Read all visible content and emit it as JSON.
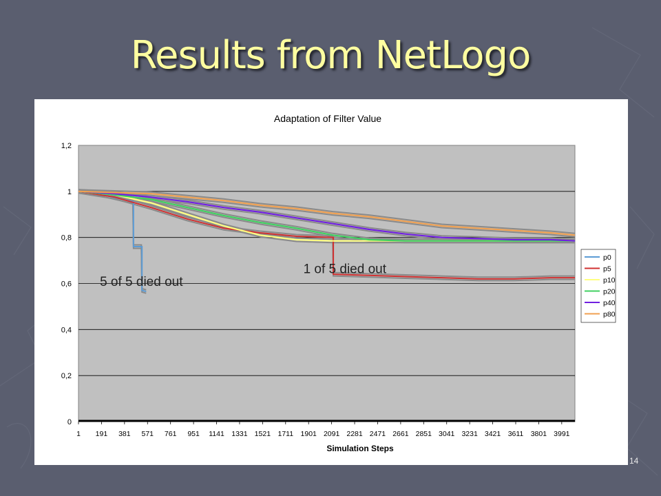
{
  "slide": {
    "title": "Results from NetLogo",
    "page_number": "14"
  },
  "chart_data": {
    "type": "line",
    "title": "Adaptation of Filter Value",
    "xlabel": "Simulation Steps",
    "ylabel": "",
    "xlim": [
      1,
      4100
    ],
    "ylim": [
      0,
      1.2
    ],
    "x_ticks": [
      "1",
      "191",
      "381",
      "571",
      "761",
      "951",
      "1141",
      "1331",
      "1521",
      "1711",
      "1901",
      "2091",
      "2281",
      "2471",
      "2661",
      "2851",
      "3041",
      "3231",
      "3421",
      "3611",
      "3801",
      "3991"
    ],
    "y_ticks": [
      "0",
      "0,2",
      "0,4",
      "0,6",
      "0,8",
      "1",
      "1,2"
    ],
    "grid": true,
    "legend": "right",
    "colors": {
      "plot_bg": "#c0c0c0",
      "gray": "#8a8a8a",
      "p0": "#5b9bd5",
      "p5": "#d03030",
      "p10": "#ffff80",
      "p20": "#40d060",
      "p40": "#7020e0",
      "p80": "#f0a050"
    },
    "series": [
      {
        "name": "p0",
        "x": [
          1,
          200,
          450,
          455,
          520,
          525,
          560
        ],
        "y": [
          1.0,
          0.985,
          0.955,
          0.76,
          0.76,
          0.57,
          0.565
        ]
      },
      {
        "name": "p5",
        "x": [
          1,
          300,
          600,
          900,
          1200,
          1500,
          1800,
          2100,
          2105,
          2400,
          2700,
          3000,
          3300,
          3600,
          3900,
          4100
        ],
        "y": [
          1.0,
          0.975,
          0.93,
          0.88,
          0.84,
          0.82,
          0.805,
          0.8,
          0.64,
          0.635,
          0.63,
          0.625,
          0.62,
          0.62,
          0.625,
          0.625
        ]
      },
      {
        "name": "p10",
        "x": [
          1,
          300,
          600,
          900,
          1200,
          1500,
          1800,
          2100,
          2400,
          2700,
          3000,
          3300,
          3600,
          3900,
          4100
        ],
        "y": [
          1.0,
          0.985,
          0.95,
          0.9,
          0.85,
          0.81,
          0.79,
          0.785,
          0.785,
          0.785,
          0.785,
          0.785,
          0.785,
          0.785,
          0.785
        ]
      },
      {
        "name": "p20",
        "x": [
          1,
          300,
          600,
          900,
          1200,
          1500,
          1800,
          2100,
          2400,
          2700,
          3000,
          3300,
          3600,
          3900,
          4100
        ],
        "y": [
          1.0,
          0.985,
          0.965,
          0.93,
          0.895,
          0.865,
          0.84,
          0.81,
          0.79,
          0.785,
          0.785,
          0.785,
          0.785,
          0.785,
          0.785
        ]
      },
      {
        "name": "p40",
        "x": [
          1,
          300,
          600,
          900,
          1200,
          1500,
          1800,
          2100,
          2400,
          2700,
          3000,
          3300,
          3600,
          3900,
          4100
        ],
        "y": [
          1.0,
          0.99,
          0.975,
          0.955,
          0.93,
          0.91,
          0.885,
          0.86,
          0.835,
          0.815,
          0.8,
          0.795,
          0.79,
          0.79,
          0.785
        ]
      },
      {
        "name": "p80",
        "x": [
          1,
          300,
          600,
          900,
          1200,
          1500,
          1800,
          2100,
          2400,
          2700,
          3000,
          3300,
          3600,
          3900,
          4100
        ],
        "y": [
          1.0,
          0.995,
          0.99,
          0.975,
          0.96,
          0.94,
          0.925,
          0.905,
          0.89,
          0.87,
          0.85,
          0.84,
          0.83,
          0.82,
          0.81
        ]
      }
    ],
    "annotations": [
      {
        "text": "5 of 5 died out",
        "x": 520,
        "y": 0.59
      },
      {
        "text": "1 of 5 died out",
        "x": 2200,
        "y": 0.645
      }
    ]
  }
}
